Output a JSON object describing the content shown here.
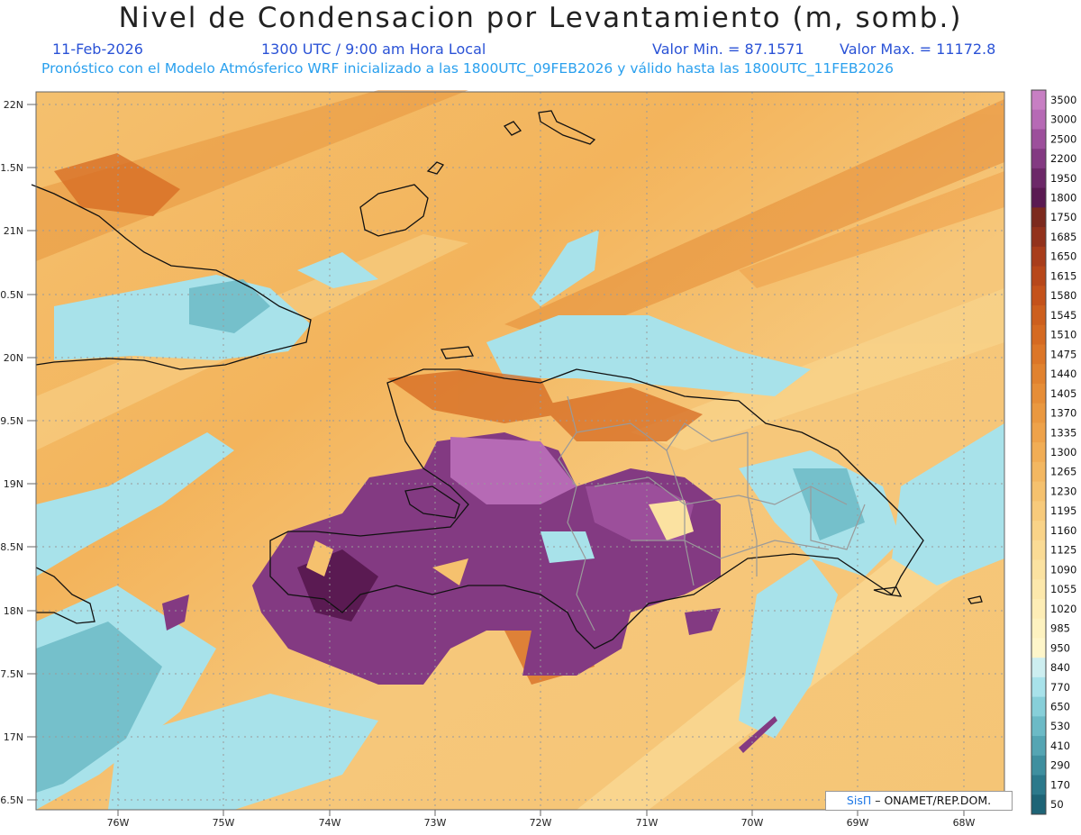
{
  "header": {
    "title": "Nivel de Condensacion por Levantamiento (m, somb.)",
    "date": "11-Feb-2026",
    "time": "1300 UTC / 9:00 am Hora Local",
    "min_label": "Valor Min. = 87.1571",
    "max_label": "Valor Max. = 11172.8",
    "subtitle": "Pronóstico con el Modelo Atmósferico WRF inicializado a las 1800UTC_09FEB2026 y válido hasta las  1800UTC_11FEB2026"
  },
  "map": {
    "lat_labels": [
      "22N",
      "1.5N",
      "21N",
      "0.5N",
      "20N",
      "9.5N",
      "19N",
      "8.5N",
      "18N",
      "7.5N",
      "17N",
      "6.5N"
    ],
    "lon_labels": [
      "76W",
      "75W",
      "74W",
      "73W",
      "72W",
      "71W",
      "70W",
      "69W",
      "68W"
    ],
    "colorbar": {
      "levels": [
        "3500",
        "3000",
        "2500",
        "2200",
        "1950",
        "1800",
        "1750",
        "1685",
        "1650",
        "1615",
        "1580",
        "1545",
        "1510",
        "1475",
        "1440",
        "1405",
        "1370",
        "1335",
        "1300",
        "1265",
        "1230",
        "1195",
        "1160",
        "1125",
        "1090",
        "1055",
        "1020",
        "985",
        "950",
        "840",
        "770",
        "650",
        "530",
        "410",
        "290",
        "170",
        "50"
      ],
      "colors": [
        "#c77fc3",
        "#b66ab5",
        "#9c4f9b",
        "#833a82",
        "#6c2868",
        "#5a1a52",
        "#7c2a1e",
        "#92321c",
        "#a83d1b",
        "#b7471a",
        "#c4521b",
        "#cd5f1e",
        "#d56a22",
        "#dc7628",
        "#e1822f",
        "#e68d37",
        "#ea9840",
        "#eea24a",
        "#f1ad55",
        "#f3b761",
        "#f5c16e",
        "#f7ca7b",
        "#f9d388",
        "#fadb95",
        "#fbe2a1",
        "#fce8ac",
        "#fdedb6",
        "#fdf2c0",
        "#fef6ca",
        "#cdeef0",
        "#a8e2ea",
        "#87cfd9",
        "#6cbac6",
        "#55a5b3",
        "#3f8f9f",
        "#2c798b",
        "#1e6476"
      ]
    },
    "credit_brand": "SisΠ",
    "credit_org": " ONAMET/REP.DOM."
  }
}
